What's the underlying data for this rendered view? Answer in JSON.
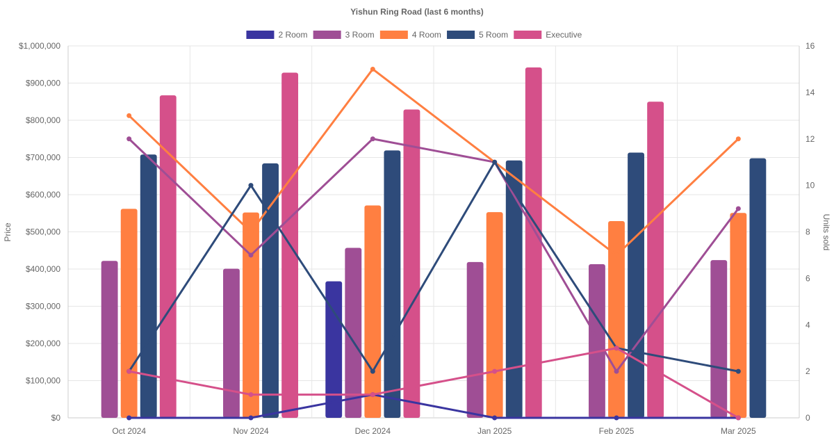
{
  "chart_data": {
    "type": "bar",
    "title": "Yishun Ring Road (last 6 months)",
    "categories": [
      "Oct 2024",
      "Nov 2024",
      "Dec 2024",
      "Jan 2025",
      "Feb 2025",
      "Mar 2025"
    ],
    "ylabel": "Price",
    "y2label": "Units sold",
    "ylim": [
      0,
      1000000
    ],
    "y2lim": [
      0,
      16
    ],
    "yticks": [
      "$0",
      "$100,000",
      "$200,000",
      "$300,000",
      "$400,000",
      "$500,000",
      "$600,000",
      "$700,000",
      "$800,000",
      "$900,000",
      "$1,000,000"
    ],
    "y2ticks": [
      "0",
      "2",
      "4",
      "6",
      "8",
      "10",
      "12",
      "14",
      "16"
    ],
    "grid": true,
    "legend_position": "top",
    "series": [
      {
        "name": "2 Room",
        "color": "#3a35a0",
        "price": [
          null,
          null,
          367000,
          null,
          null,
          null
        ],
        "units": [
          0,
          0,
          1,
          0,
          0,
          0
        ]
      },
      {
        "name": "3 Room",
        "color": "#9f4e95",
        "price": [
          422000,
          401000,
          457000,
          419000,
          413000,
          424000
        ],
        "units": [
          12,
          7,
          12,
          11,
          2,
          9
        ]
      },
      {
        "name": "4 Room",
        "color": "#ff7f41",
        "price": [
          562000,
          552000,
          571000,
          553000,
          529000,
          551000
        ],
        "units": [
          13,
          8,
          15,
          11,
          7,
          12
        ]
      },
      {
        "name": "5 Room",
        "color": "#2e4b7a",
        "price": [
          708000,
          684000,
          719000,
          692000,
          713000,
          698000
        ],
        "units": [
          2,
          10,
          2,
          11,
          3,
          2
        ]
      },
      {
        "name": "Executive",
        "color": "#d5508a",
        "price": [
          867000,
          928000,
          829000,
          942000,
          850000,
          null
        ],
        "units": [
          2,
          1,
          1,
          2,
          3,
          0
        ]
      }
    ]
  }
}
